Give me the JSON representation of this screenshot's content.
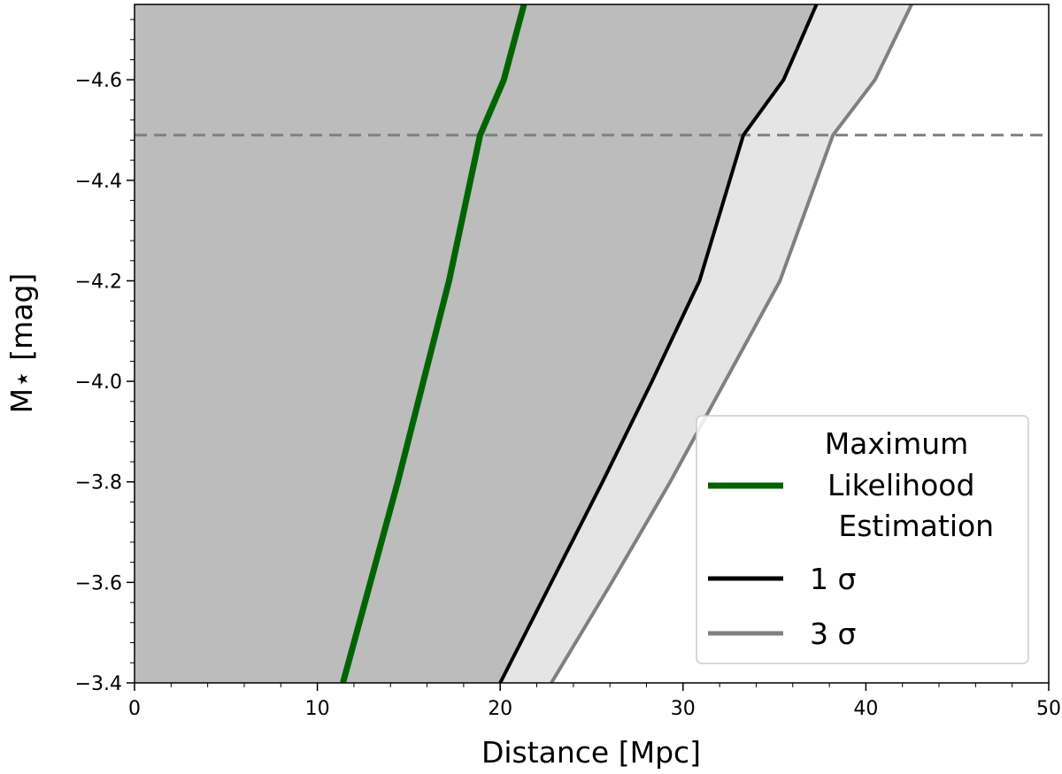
{
  "chart_data": {
    "type": "line",
    "xlabel": "Distance [Mpc]",
    "ylabel": "M⋆ [mag]",
    "xlim": [
      0,
      50
    ],
    "ylim": [
      -3.4,
      -4.75
    ],
    "y_axis_inverted": true,
    "x_ticks": [
      "0",
      "10",
      "20",
      "30",
      "40",
      "50"
    ],
    "y_ticks": [
      "−3.4",
      "−3.6",
      "−3.8",
      "−4.0",
      "−4.2",
      "−4.4",
      "−4.6"
    ],
    "grid": false,
    "legend_position": "lower-right",
    "reference_line": {
      "y": -4.49,
      "style": "dashed",
      "color": "#808080"
    },
    "series": [
      {
        "name": "Maximum Likelihood Estimation",
        "legend_lines": [
          "Maximum",
          " Likelihood",
          " Estimation"
        ],
        "color": "#006400",
        "x": [
          11.4,
          12.9,
          14.4,
          15.8,
          17.2,
          18.9,
          20.2,
          21.3
        ],
        "y": [
          -3.4,
          -3.6,
          -3.8,
          -4.0,
          -4.2,
          -4.49,
          -4.6,
          -4.75
        ]
      },
      {
        "name": "1 σ",
        "color": "#000000",
        "fill": "#bcbcbc",
        "x": [
          20.0,
          22.8,
          25.6,
          28.3,
          30.9,
          33.3,
          35.5,
          37.3
        ],
        "y": [
          -3.4,
          -3.6,
          -3.8,
          -4.0,
          -4.2,
          -4.49,
          -4.6,
          -4.75
        ]
      },
      {
        "name": "3 σ",
        "color": "#808080",
        "fill": "#e5e5e5",
        "x": [
          22.8,
          26.1,
          29.3,
          32.3,
          35.3,
          38.2,
          40.5,
          42.5
        ],
        "y": [
          -3.4,
          -3.6,
          -3.8,
          -4.0,
          -4.2,
          -4.49,
          -4.6,
          -4.75
        ]
      }
    ]
  }
}
